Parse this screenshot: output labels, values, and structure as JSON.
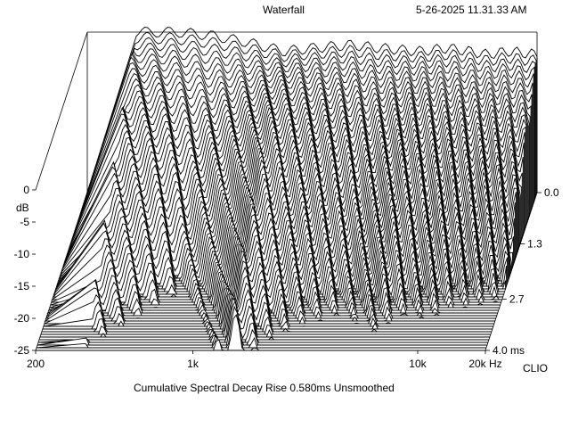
{
  "header": {
    "title": "Waterfall",
    "timestamp": "5-26-2025 11.31.33 AM"
  },
  "footer": {
    "caption": "Cumulative Spectral Decay   Rise 0.580ms   Unsmoothed"
  },
  "brand": {
    "name": "CLIO"
  },
  "chart_data": {
    "type": "waterfall",
    "title": "Waterfall",
    "subtitle": "Cumulative Spectral Decay   Rise 0.580ms   Unsmoothed",
    "x_axis": {
      "scale": "log",
      "range": [
        200,
        20000
      ],
      "tick_labels": [
        "200",
        "1k",
        "10k",
        "20k Hz"
      ],
      "tick_values": [
        200,
        1000,
        10000,
        20000
      ]
    },
    "y_axis": {
      "unit": "dB",
      "range": [
        -25,
        0
      ],
      "tick_labels": [
        "0",
        "-5",
        "-10",
        "-15",
        "-20",
        "-25"
      ],
      "tick_values": [
        0,
        -5,
        -10,
        -15,
        -20,
        -25
      ]
    },
    "z_axis": {
      "unit": "ms",
      "range": [
        0,
        4.0
      ],
      "tick_labels": [
        "0.0",
        "1.3",
        "2.7",
        "4.0 ms"
      ],
      "tick_values": [
        0.0,
        1.3,
        2.7,
        4.0
      ]
    },
    "slices": 60,
    "series": [
      {
        "time_ms": 0.0,
        "freq_hz": [
          330,
          500,
          700,
          1000,
          1500,
          2000,
          3000,
          4000,
          6000,
          8000,
          10000,
          12000,
          15000,
          20000
        ],
        "db": [
          0,
          0,
          -0.5,
          -1.5,
          -3,
          -2.5,
          -2,
          -2.5,
          -3,
          -2.5,
          -3,
          -3.5,
          -3,
          -3.5
        ]
      },
      {
        "time_ms": 1.3,
        "freq_hz": [
          330,
          500,
          700,
          1000,
          1500,
          2000,
          3000,
          4000,
          6000,
          8000,
          10000,
          12000,
          15000,
          20000
        ],
        "db": [
          -9,
          -11,
          -14,
          -12,
          -9,
          -11,
          -12,
          -13,
          -12,
          -13,
          -13,
          -14,
          -14,
          -15
        ]
      }
    ],
    "grid": false,
    "legend": "none"
  }
}
